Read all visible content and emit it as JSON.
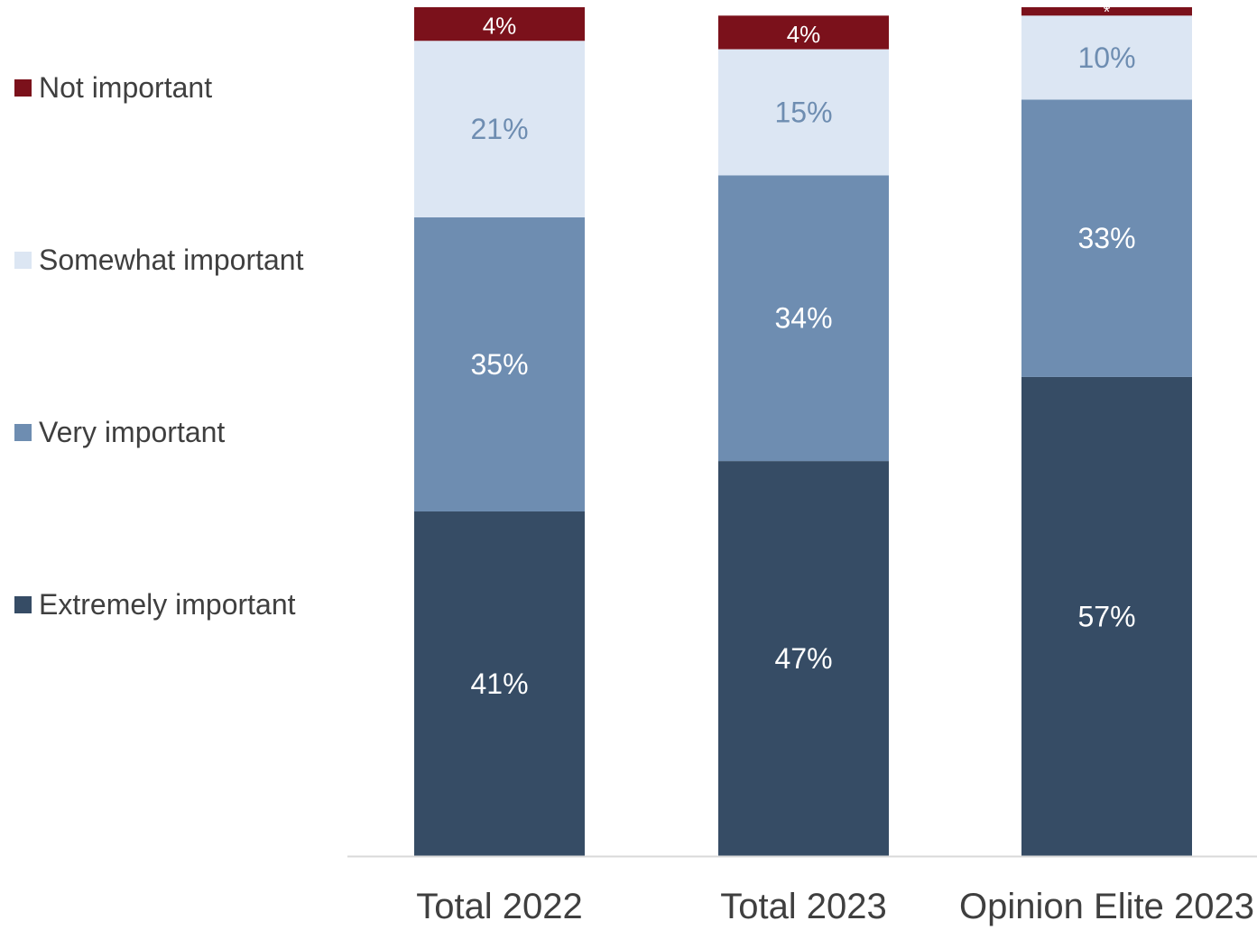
{
  "chart_data": {
    "type": "bar",
    "stacked": true,
    "categories": [
      "Total 2022",
      "Total 2023",
      "Opinion Elite 2023"
    ],
    "series": [
      {
        "name": "Extremely important",
        "color": "#364c65",
        "values": [
          41,
          47,
          57
        ],
        "labels": [
          "41%",
          "47%",
          "57%"
        ],
        "label_color": "#ffffff"
      },
      {
        "name": "Very important",
        "color": "#6e8db1",
        "values": [
          35,
          34,
          33
        ],
        "labels": [
          "35%",
          "34%",
          "33%"
        ],
        "label_color": "#ffffff"
      },
      {
        "name": "Somewhat important",
        "color": "#dce6f3",
        "values": [
          21,
          15,
          10
        ],
        "labels": [
          "21%",
          "15%",
          "10%"
        ],
        "label_color": "#6e8db1"
      },
      {
        "name": "Not important",
        "color": "#7b111b",
        "values": [
          4,
          4,
          1
        ],
        "labels": [
          "4%",
          "4%",
          "*"
        ],
        "label_color": "#ffffff"
      }
    ],
    "legend_order": [
      "Not important",
      "Somewhat important",
      "Very important",
      "Extremely important"
    ],
    "legend_position": "left",
    "ylim": [
      0,
      101
    ],
    "grid": false,
    "title": "",
    "xlabel": "",
    "ylabel": ""
  }
}
